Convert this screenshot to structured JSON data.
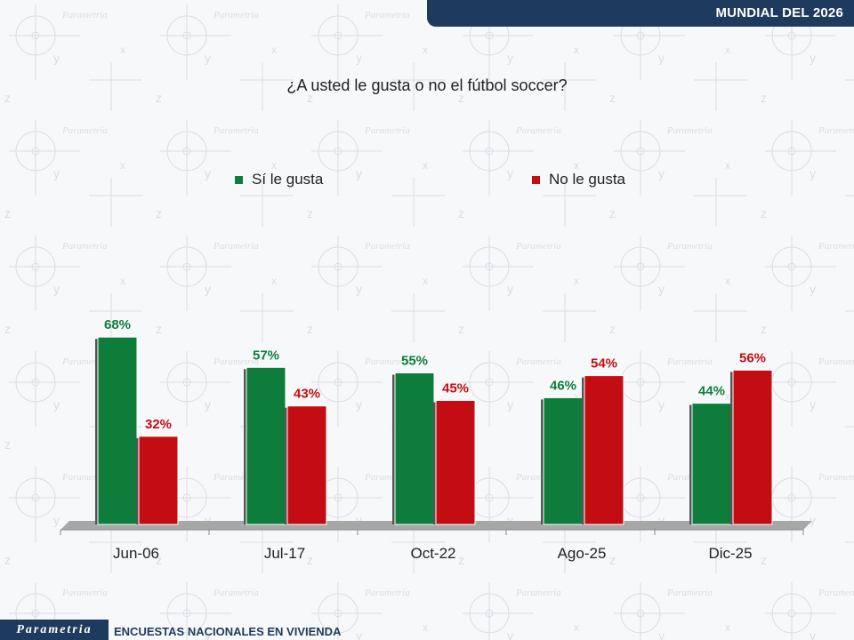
{
  "header": {
    "badge": "MUNDIAL DEL 2026"
  },
  "footer": {
    "brand": "Parametria",
    "survey": "ENCUESTAS NACIONALES EN VIVIENDA"
  },
  "colors": {
    "yes": "#0e7d3c",
    "no": "#c40d12",
    "banner": "#1f3a5f"
  },
  "chart_data": {
    "type": "bar",
    "title": "¿A usted le gusta o no el fútbol soccer?",
    "categories": [
      "Jun-06",
      "Jul-17",
      "Oct-22",
      "Ago-25",
      "Dic-25"
    ],
    "series": [
      {
        "name": "Sí le gusta",
        "values": [
          68,
          57,
          55,
          46,
          44
        ],
        "labels": [
          "68%",
          "57%",
          "55%",
          "46%",
          "44%"
        ]
      },
      {
        "name": "No le gusta",
        "values": [
          32,
          43,
          45,
          54,
          56
        ],
        "labels": [
          "32%",
          "43%",
          "45%",
          "54%",
          "56%"
        ]
      }
    ],
    "ylim": [
      0,
      100
    ],
    "xlabel": "",
    "ylabel": "",
    "legend": "top"
  }
}
